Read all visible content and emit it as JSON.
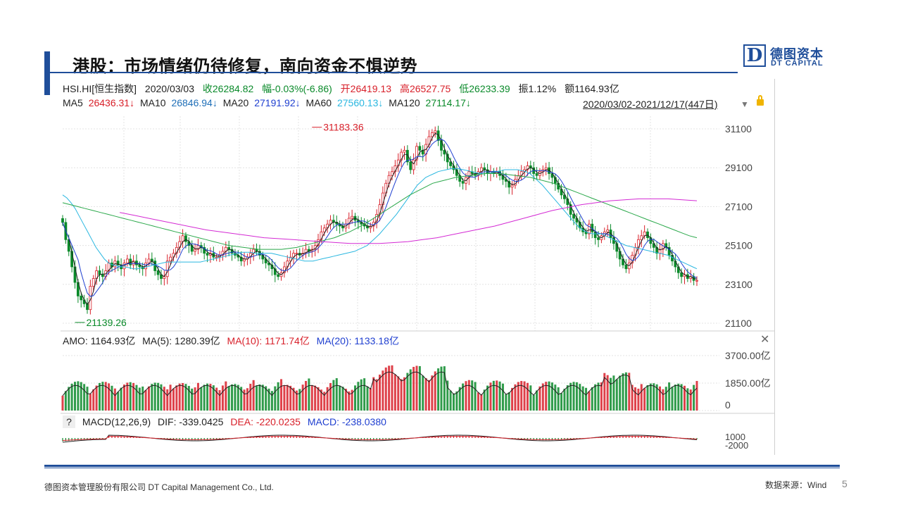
{
  "slide": {
    "title": "港股：市场情绪仍待修复，南向资金不惧逆势",
    "logo_cn": "德图资本",
    "logo_en": "DT CAPITAL",
    "logo_letter": "D",
    "footer_left": "德图资本管理股份有限公司  DT Capital Management  Co., Ltd.",
    "footer_right": "数据来源：Wind",
    "page_number": "5"
  },
  "header": {
    "code": "HSI.HI[恒生指数]",
    "date": "2020/03/03",
    "close": "收26284.82",
    "change": "幅-0.03%(-6.86)",
    "open": "开26419.13",
    "high": "高26527.75",
    "low": "低26233.39",
    "amplitude": "振1.12%",
    "turnover": "额1164.93亿"
  },
  "ma_legend": {
    "ma5": "MA5",
    "ma5_val": "26436.31↓",
    "ma10": "MA10",
    "ma10_val": "26846.94↓",
    "ma20": "MA20",
    "ma20_val": "27191.92↓",
    "ma60": "MA60",
    "ma60_val": "27560.13↓",
    "ma120": "MA120",
    "ma120_val": "27114.17↓",
    "range": "2020/03/02-2021/12/17(447日)",
    "colors": {
      "ma5": "#222222",
      "ma10": "#1f3fd0",
      "ma20": "#2ab7e0",
      "ma60": "#2aa84a",
      "ma120": "#d42ad4"
    }
  },
  "volume_legend": {
    "amo": "AMO: 1164.93亿",
    "ma5": "MA(5): 1280.39亿",
    "ma10": "MA(10): 1171.74亿",
    "ma20": "MA(20): 1133.18亿"
  },
  "macd_legend": {
    "help": "?",
    "label": "MACD(12,26,9)",
    "dif": "DIF: -339.0425",
    "dea": "DEA: -220.0235",
    "macd": "MACD: -238.0380"
  },
  "chart_data": [
    {
      "type": "candlestick",
      "y_ticks": [
        "31100",
        "29100",
        "27100",
        "25100",
        "23100",
        "21100"
      ],
      "ylim": [
        21100,
        31100
      ],
      "annotations": [
        {
          "text": "31183.36",
          "value": 31183.36,
          "date_index": 176
        },
        {
          "text": "21139.26",
          "value": 21139.26,
          "date_index": 8
        }
      ],
      "close_series": [
        26285,
        25400,
        24800,
        24000,
        23200,
        22500,
        22300,
        22100,
        21800,
        23000,
        23400,
        23800,
        23600,
        23500,
        23800,
        24200,
        24000,
        24300,
        24100,
        23900,
        24200,
        24400,
        24100,
        24300,
        24100,
        24000,
        23900,
        24200,
        24400,
        24300,
        23800,
        23600,
        23400,
        23500,
        24300,
        24500,
        24700,
        25000,
        25300,
        25600,
        25300,
        25100,
        24800,
        24900,
        25100,
        25000,
        24700,
        24600,
        24700,
        24500,
        24500,
        24600,
        24800,
        25000,
        24900,
        24700,
        24600,
        24500,
        24300,
        24400,
        24500,
        24700,
        24900,
        24800,
        24600,
        24400,
        24200,
        24100,
        23900,
        23600,
        23500,
        23700,
        24000,
        24300,
        24500,
        24700,
        24700,
        24600,
        24700,
        24900,
        24800,
        24900,
        25100,
        25400,
        25800,
        26000,
        26200,
        26400,
        26300,
        26200,
        26100,
        26000,
        26200,
        26500,
        26600,
        26400,
        26300,
        26200,
        26100,
        26000,
        26100,
        26300,
        26700,
        27200,
        27800,
        28300,
        28700,
        28900,
        29200,
        29500,
        29900,
        30000,
        29400,
        29000,
        29500,
        30200,
        30000,
        29800,
        30300,
        30700,
        30900,
        31000,
        30500,
        30000,
        29800,
        29400,
        29200,
        29000,
        28700,
        28400,
        28300,
        28600,
        28900,
        28800,
        28700,
        28900,
        29100,
        29000,
        28800,
        28900,
        28800,
        28900,
        28700,
        28500,
        28400,
        28100,
        28200,
        28500,
        28700,
        28900,
        29000,
        29200,
        29100,
        28800,
        28700,
        28900,
        29000,
        29100,
        28800,
        28600,
        28300,
        28000,
        27700,
        27500,
        27200,
        26700,
        26500,
        26300,
        26000,
        25800,
        25700,
        26200,
        25800,
        25500,
        25400,
        25600,
        25800,
        25900,
        25500,
        25200,
        24800,
        24400,
        24100,
        23900,
        24200,
        24600,
        25000,
        25400,
        25600,
        25800,
        25500,
        25200,
        25000,
        24700,
        24900,
        25200,
        25000,
        24600,
        24300,
        24000,
        23700,
        23500,
        23600,
        23400,
        23500,
        23300,
        23300
      ],
      "ma20_series": [
        27700,
        27550,
        27300,
        27000,
        26600,
        26200,
        25800,
        25400,
        25000,
        24700,
        24400,
        24200,
        24100,
        24050,
        24000,
        24000,
        23950,
        23900,
        23900,
        23950,
        24000,
        24050,
        24100,
        24150,
        24200,
        24250,
        24250,
        24250,
        24250,
        24250,
        24250,
        24250,
        24250,
        24250,
        24300,
        24350,
        24400,
        24450,
        24500,
        24550,
        24600,
        24650,
        24700,
        24750,
        24750,
        24750,
        24700,
        24700,
        24700,
        24700,
        24700,
        24650,
        24600,
        24550,
        24500,
        24450,
        24400,
        24350,
        24300,
        24300,
        24300,
        24350,
        24400,
        24450,
        24500,
        24550,
        24600,
        24650,
        24700,
        24750,
        24800,
        24900,
        25000,
        25100,
        25300,
        25500,
        25700,
        25950,
        26200,
        26450,
        26700,
        27000,
        27300,
        27600,
        27900,
        28200,
        28400,
        28600,
        28700,
        28800,
        28900,
        28950,
        29000,
        29050,
        29050,
        29050,
        29000,
        28950,
        28900,
        28850,
        28800,
        28800,
        28800,
        28850,
        28900,
        28950,
        29000,
        29000,
        29000,
        29000,
        28950,
        28900,
        28800,
        28600,
        28400,
        28200,
        27950,
        27700,
        27450,
        27200,
        26950,
        26700,
        26450,
        26200,
        26000,
        25850,
        25750,
        25700,
        25700,
        25700,
        25600,
        25500,
        25400,
        25300,
        25200,
        25100,
        25050,
        25000,
        24950,
        24900,
        24850,
        24800,
        24750,
        24700,
        24650,
        24600,
        24500,
        24400,
        24300,
        24200,
        24100,
        24000,
        23900
      ],
      "ma60_series": [
        27300,
        27200,
        27100,
        27000,
        26900,
        26800,
        26700,
        26600,
        26500,
        26400,
        26300,
        26200,
        26100,
        26000,
        25900,
        25800,
        25700,
        25600,
        25500,
        25400,
        25300,
        25200,
        25100,
        25050,
        25000,
        24950,
        24900,
        24900,
        24900,
        24900,
        24950,
        25000,
        25100,
        25200,
        25300,
        25400,
        25500,
        25650,
        25800,
        26000,
        26200,
        26450,
        26700,
        26950,
        27200,
        27450,
        27700,
        27900,
        28100,
        28300,
        28400,
        28500,
        28600,
        28650,
        28700,
        28750,
        28800,
        28800,
        28800,
        28750,
        28700,
        28650,
        28600,
        28500,
        28400,
        28300,
        28150,
        28000,
        27850,
        27700,
        27550,
        27400,
        27250,
        27100,
        26950,
        26800,
        26650,
        26500,
        26350,
        26200,
        26050,
        25900,
        25750,
        25600,
        25500
      ],
      "ma120_series": [
        26800,
        26650,
        26500,
        26350,
        26200,
        26050,
        25900,
        25800,
        25700,
        25600,
        25500,
        25450,
        25400,
        25350,
        25300,
        25250,
        25200,
        25200,
        25200,
        25250,
        25300,
        25400,
        25500,
        25650,
        25800,
        25950,
        26100,
        26300,
        26500,
        26700,
        26900,
        27050,
        27200,
        27300,
        27400,
        27450,
        27500,
        27500,
        27500,
        27450,
        27400
      ],
      "ma120_start_date_index": 27,
      "volume_y_ticks": [
        "3700.00亿",
        "1850.00亿",
        "0"
      ],
      "volume_ylim": [
        0,
        3700
      ],
      "macd_y_ticks": [
        "1000",
        "-2000"
      ],
      "x_count": 447
    }
  ]
}
